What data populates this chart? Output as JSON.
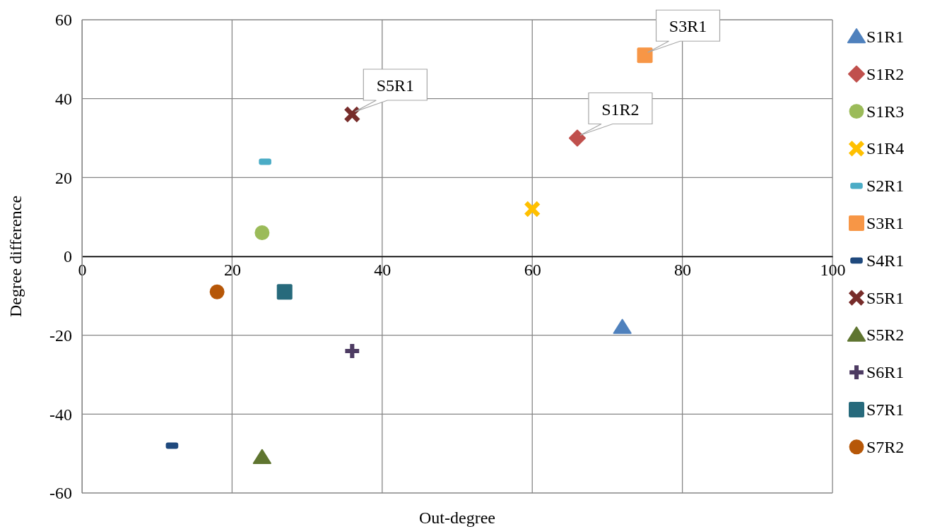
{
  "chart_data": {
    "type": "scatter",
    "xlabel": "Out-degree",
    "ylabel": "Degree difference",
    "xlim": [
      0,
      100
    ],
    "xticks": [
      0,
      20,
      40,
      60,
      80,
      100
    ],
    "ylim": [
      -60,
      60
    ],
    "yticks": [
      -60,
      -40,
      -20,
      0,
      20,
      40,
      60
    ],
    "grid": true,
    "legend": "right",
    "annotations": [
      {
        "text": "S5R1",
        "x": 36,
        "y": 36
      },
      {
        "text": "S1R2",
        "x": 66,
        "y": 30
      },
      {
        "text": "S3R1",
        "x": 75,
        "y": 51
      }
    ],
    "series": [
      {
        "name": "S1R1",
        "color": "#4f81bd",
        "marker": "triangle",
        "x": [
          72
        ],
        "values": [
          -18
        ]
      },
      {
        "name": "S1R2",
        "color": "#c0504d",
        "marker": "diamond",
        "x": [
          66
        ],
        "values": [
          30
        ]
      },
      {
        "name": "S1R3",
        "color": "#9bbb59",
        "marker": "circle",
        "x": [
          24
        ],
        "values": [
          6
        ]
      },
      {
        "name": "S1R4",
        "color": "#ffc000",
        "marker": "cross",
        "x": [
          60
        ],
        "values": [
          12
        ]
      },
      {
        "name": "S2R1",
        "color": "#4bacc6",
        "x": [
          24.4
        ],
        "values": [
          24
        ]
      },
      {
        "name": "S3R1",
        "color": "#f79646",
        "marker": "square",
        "x": [
          75
        ],
        "values": [
          51
        ]
      },
      {
        "name": "S4R1",
        "color": "#1f497d",
        "x": [
          12
        ],
        "values": [
          -48
        ]
      },
      {
        "name": "S5R1",
        "color": "#772c2a",
        "marker": "cross",
        "x": [
          36
        ],
        "values": [
          36
        ]
      },
      {
        "name": "S5R2",
        "color": "#5f7530",
        "marker": "triangle",
        "x": [
          24
        ],
        "values": [
          -51
        ]
      },
      {
        "name": "S6R1",
        "color": "#4d3b62",
        "marker": "plus",
        "x": [
          36
        ],
        "values": [
          -24
        ]
      },
      {
        "name": "S7R1",
        "color": "#276a7c",
        "marker": "square",
        "x": [
          27
        ],
        "values": [
          -9
        ]
      },
      {
        "name": "S7R2",
        "color": "#b65708",
        "marker": "circle",
        "x": [
          18
        ],
        "values": [
          -9
        ]
      }
    ]
  }
}
